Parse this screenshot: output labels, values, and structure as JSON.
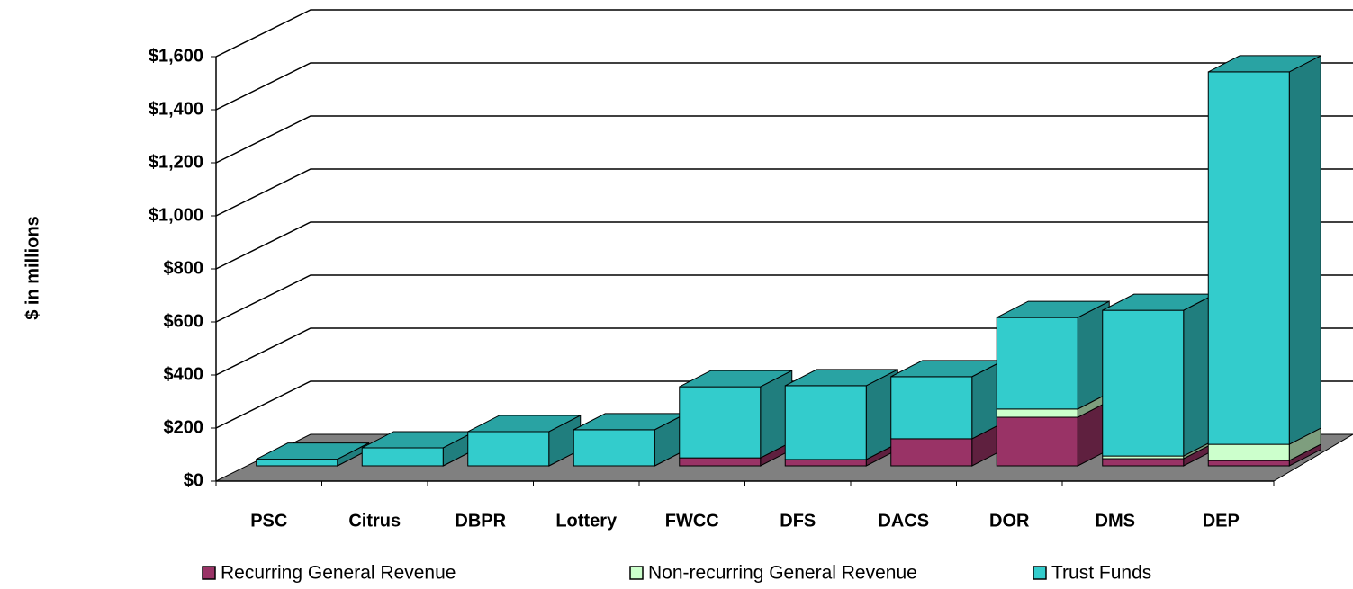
{
  "chart_data": {
    "type": "bar3d_stacked",
    "y_axis_label": "$ in millions",
    "categories": [
      "PSC",
      "Citrus",
      "DBPR",
      "Lottery",
      "FWCC",
      "DFS",
      "DACS",
      "DOR",
      "DMS",
      "DEP"
    ],
    "series": [
      {
        "name": "Recurring General Revenue",
        "color": "#993366",
        "values": [
          0,
          0,
          0,
          0,
          30,
          24,
          102,
          183,
          27,
          20
        ]
      },
      {
        "name": "Non-recurring General Revenue",
        "color": "#ccffcc",
        "values": [
          0,
          0,
          0,
          0,
          0,
          0,
          0,
          31,
          10,
          61
        ]
      },
      {
        "name": "Trust Funds",
        "color": "#33cccc",
        "values": [
          25,
          68,
          129,
          136,
          268,
          278,
          234,
          345,
          549,
          1404
        ]
      }
    ],
    "ylim": [
      0,
      1600
    ],
    "yticks": [
      {
        "value": 0,
        "label": "$0"
      },
      {
        "value": 200,
        "label": "$200"
      },
      {
        "value": 400,
        "label": "$400"
      },
      {
        "value": 600,
        "label": "$600"
      },
      {
        "value": 800,
        "label": "$800"
      },
      {
        "value": 1000,
        "label": "$1,000"
      },
      {
        "value": 1200,
        "label": "$1,200"
      },
      {
        "value": 1400,
        "label": "$1,400"
      },
      {
        "value": 1600,
        "label": "$1,600"
      }
    ],
    "grid": true
  }
}
